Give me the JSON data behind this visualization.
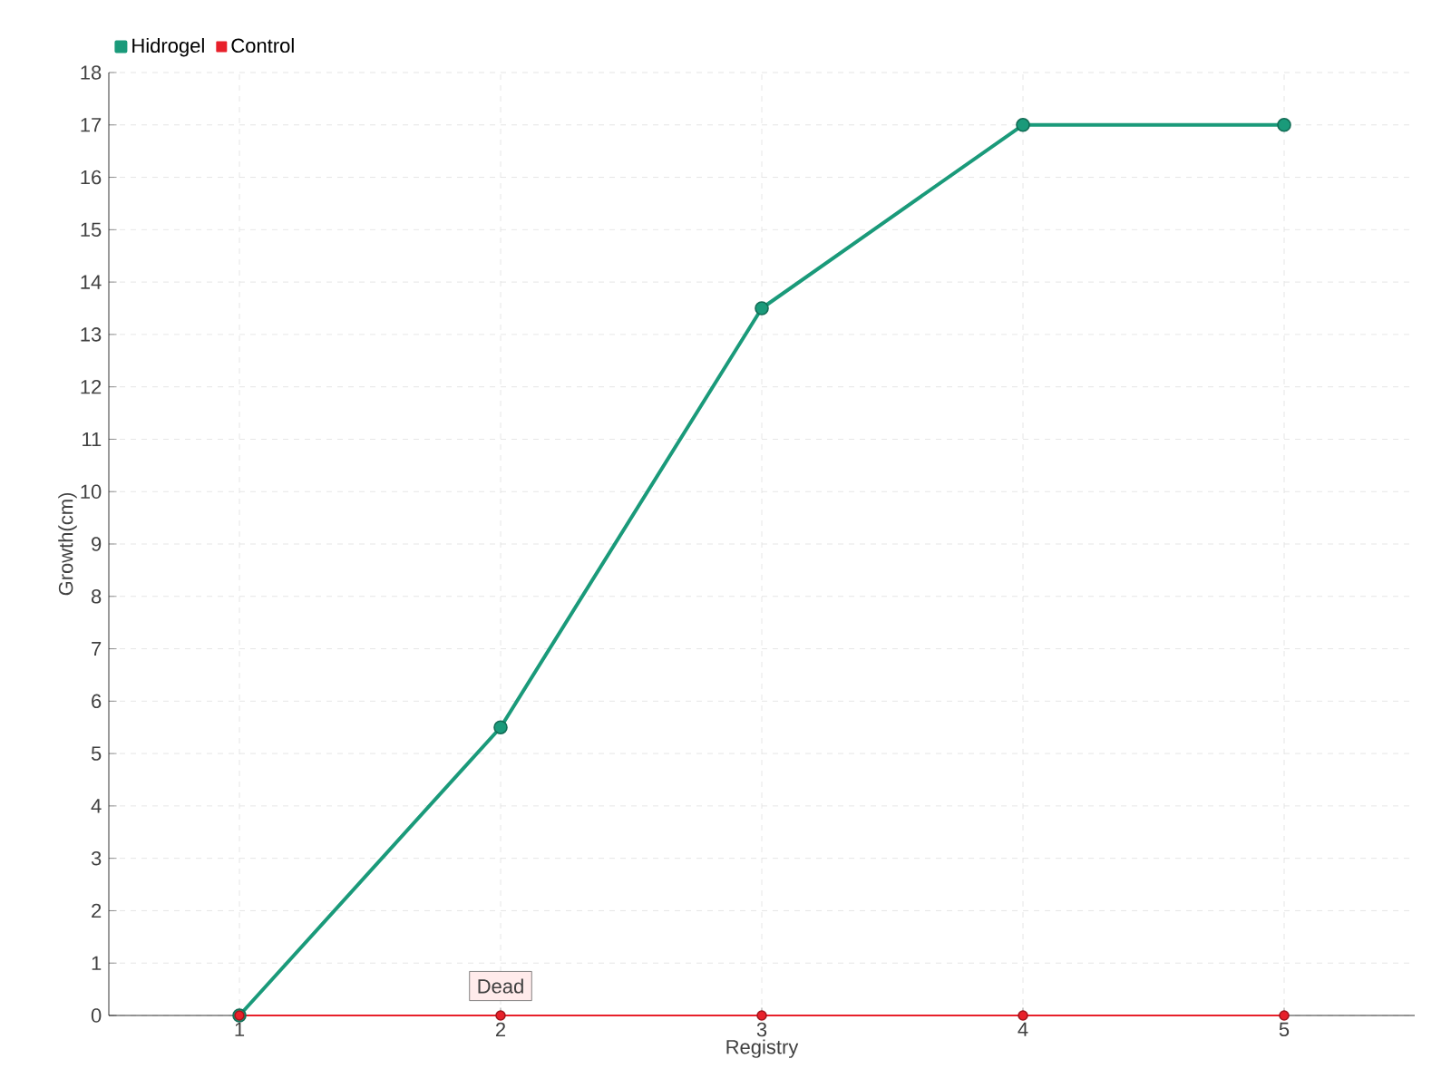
{
  "chart_data": {
    "type": "line",
    "xlabel": "Registry",
    "ylabel": "Growth(cm)",
    "categories": [
      "1",
      "2",
      "3",
      "4",
      "5"
    ],
    "series": [
      {
        "name": "Hidrogel",
        "color": "#1a9a7a",
        "values": [
          0,
          5.5,
          13.5,
          17,
          17
        ]
      },
      {
        "name": "Control",
        "color": "#e8202a",
        "values": [
          0,
          0,
          0,
          0,
          0
        ]
      }
    ],
    "ylim": [
      0,
      18
    ],
    "yticks": [
      0,
      1,
      2,
      3,
      4,
      5,
      6,
      7,
      8,
      9,
      10,
      11,
      12,
      13,
      14,
      15,
      16,
      17,
      18
    ],
    "grid": true,
    "legend": "top left",
    "marker": "circle",
    "annotations": [
      {
        "text": "Dead",
        "x": "2",
        "y": 0
      }
    ]
  }
}
